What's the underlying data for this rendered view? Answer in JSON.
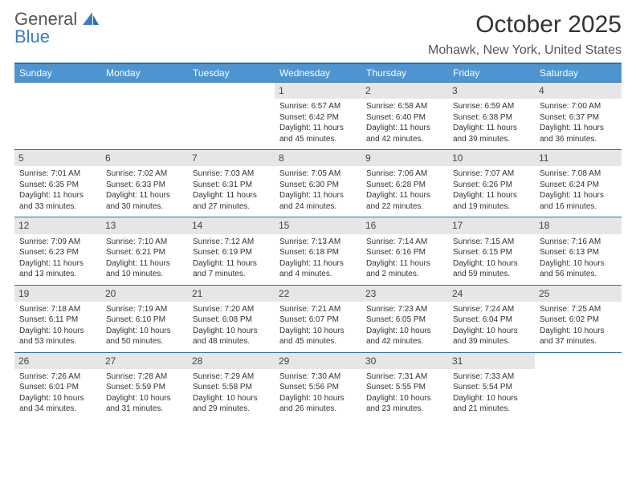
{
  "brand": {
    "top": "General",
    "bottom": "Blue"
  },
  "title": "October 2025",
  "location": "Mohawk, New York, United States",
  "styling": {
    "header_bg": "#4d94d1",
    "row_border": "#2f6fa8",
    "daynum_bg": "#e6e6e6",
    "page_bg": "#ffffff",
    "text_color": "#333333",
    "title_fontsize": 30,
    "location_fontsize": 16,
    "day_header_fontsize": 12,
    "cell_fontsize": 10,
    "table_cols": 7,
    "brand_accent": "#3a7ec2"
  },
  "day_headers": [
    "Sunday",
    "Monday",
    "Tuesday",
    "Wednesday",
    "Thursday",
    "Friday",
    "Saturday"
  ],
  "weeks": [
    [
      {
        "n": "",
        "sr": "",
        "ss": "",
        "dl": ""
      },
      {
        "n": "",
        "sr": "",
        "ss": "",
        "dl": ""
      },
      {
        "n": "",
        "sr": "",
        "ss": "",
        "dl": ""
      },
      {
        "n": "1",
        "sr": "Sunrise: 6:57 AM",
        "ss": "Sunset: 6:42 PM",
        "dl": "Daylight: 11 hours and 45 minutes."
      },
      {
        "n": "2",
        "sr": "Sunrise: 6:58 AM",
        "ss": "Sunset: 6:40 PM",
        "dl": "Daylight: 11 hours and 42 minutes."
      },
      {
        "n": "3",
        "sr": "Sunrise: 6:59 AM",
        "ss": "Sunset: 6:38 PM",
        "dl": "Daylight: 11 hours and 39 minutes."
      },
      {
        "n": "4",
        "sr": "Sunrise: 7:00 AM",
        "ss": "Sunset: 6:37 PM",
        "dl": "Daylight: 11 hours and 36 minutes."
      }
    ],
    [
      {
        "n": "5",
        "sr": "Sunrise: 7:01 AM",
        "ss": "Sunset: 6:35 PM",
        "dl": "Daylight: 11 hours and 33 minutes."
      },
      {
        "n": "6",
        "sr": "Sunrise: 7:02 AM",
        "ss": "Sunset: 6:33 PM",
        "dl": "Daylight: 11 hours and 30 minutes."
      },
      {
        "n": "7",
        "sr": "Sunrise: 7:03 AM",
        "ss": "Sunset: 6:31 PM",
        "dl": "Daylight: 11 hours and 27 minutes."
      },
      {
        "n": "8",
        "sr": "Sunrise: 7:05 AM",
        "ss": "Sunset: 6:30 PM",
        "dl": "Daylight: 11 hours and 24 minutes."
      },
      {
        "n": "9",
        "sr": "Sunrise: 7:06 AM",
        "ss": "Sunset: 6:28 PM",
        "dl": "Daylight: 11 hours and 22 minutes."
      },
      {
        "n": "10",
        "sr": "Sunrise: 7:07 AM",
        "ss": "Sunset: 6:26 PM",
        "dl": "Daylight: 11 hours and 19 minutes."
      },
      {
        "n": "11",
        "sr": "Sunrise: 7:08 AM",
        "ss": "Sunset: 6:24 PM",
        "dl": "Daylight: 11 hours and 16 minutes."
      }
    ],
    [
      {
        "n": "12",
        "sr": "Sunrise: 7:09 AM",
        "ss": "Sunset: 6:23 PM",
        "dl": "Daylight: 11 hours and 13 minutes."
      },
      {
        "n": "13",
        "sr": "Sunrise: 7:10 AM",
        "ss": "Sunset: 6:21 PM",
        "dl": "Daylight: 11 hours and 10 minutes."
      },
      {
        "n": "14",
        "sr": "Sunrise: 7:12 AM",
        "ss": "Sunset: 6:19 PM",
        "dl": "Daylight: 11 hours and 7 minutes."
      },
      {
        "n": "15",
        "sr": "Sunrise: 7:13 AM",
        "ss": "Sunset: 6:18 PM",
        "dl": "Daylight: 11 hours and 4 minutes."
      },
      {
        "n": "16",
        "sr": "Sunrise: 7:14 AM",
        "ss": "Sunset: 6:16 PM",
        "dl": "Daylight: 11 hours and 2 minutes."
      },
      {
        "n": "17",
        "sr": "Sunrise: 7:15 AM",
        "ss": "Sunset: 6:15 PM",
        "dl": "Daylight: 10 hours and 59 minutes."
      },
      {
        "n": "18",
        "sr": "Sunrise: 7:16 AM",
        "ss": "Sunset: 6:13 PM",
        "dl": "Daylight: 10 hours and 56 minutes."
      }
    ],
    [
      {
        "n": "19",
        "sr": "Sunrise: 7:18 AM",
        "ss": "Sunset: 6:11 PM",
        "dl": "Daylight: 10 hours and 53 minutes."
      },
      {
        "n": "20",
        "sr": "Sunrise: 7:19 AM",
        "ss": "Sunset: 6:10 PM",
        "dl": "Daylight: 10 hours and 50 minutes."
      },
      {
        "n": "21",
        "sr": "Sunrise: 7:20 AM",
        "ss": "Sunset: 6:08 PM",
        "dl": "Daylight: 10 hours and 48 minutes."
      },
      {
        "n": "22",
        "sr": "Sunrise: 7:21 AM",
        "ss": "Sunset: 6:07 PM",
        "dl": "Daylight: 10 hours and 45 minutes."
      },
      {
        "n": "23",
        "sr": "Sunrise: 7:23 AM",
        "ss": "Sunset: 6:05 PM",
        "dl": "Daylight: 10 hours and 42 minutes."
      },
      {
        "n": "24",
        "sr": "Sunrise: 7:24 AM",
        "ss": "Sunset: 6:04 PM",
        "dl": "Daylight: 10 hours and 39 minutes."
      },
      {
        "n": "25",
        "sr": "Sunrise: 7:25 AM",
        "ss": "Sunset: 6:02 PM",
        "dl": "Daylight: 10 hours and 37 minutes."
      }
    ],
    [
      {
        "n": "26",
        "sr": "Sunrise: 7:26 AM",
        "ss": "Sunset: 6:01 PM",
        "dl": "Daylight: 10 hours and 34 minutes."
      },
      {
        "n": "27",
        "sr": "Sunrise: 7:28 AM",
        "ss": "Sunset: 5:59 PM",
        "dl": "Daylight: 10 hours and 31 minutes."
      },
      {
        "n": "28",
        "sr": "Sunrise: 7:29 AM",
        "ss": "Sunset: 5:58 PM",
        "dl": "Daylight: 10 hours and 29 minutes."
      },
      {
        "n": "29",
        "sr": "Sunrise: 7:30 AM",
        "ss": "Sunset: 5:56 PM",
        "dl": "Daylight: 10 hours and 26 minutes."
      },
      {
        "n": "30",
        "sr": "Sunrise: 7:31 AM",
        "ss": "Sunset: 5:55 PM",
        "dl": "Daylight: 10 hours and 23 minutes."
      },
      {
        "n": "31",
        "sr": "Sunrise: 7:33 AM",
        "ss": "Sunset: 5:54 PM",
        "dl": "Daylight: 10 hours and 21 minutes."
      },
      {
        "n": "",
        "sr": "",
        "ss": "",
        "dl": ""
      }
    ]
  ]
}
